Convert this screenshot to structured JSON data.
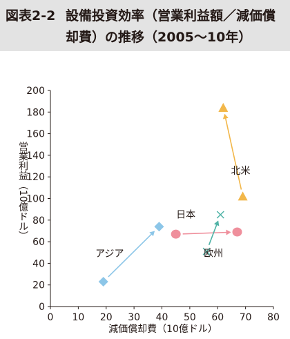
{
  "header": {
    "figure_label": "図表2-2",
    "title_line1": "設備投資効率（営業利益額／減価償",
    "title_line2": "却費）の推移（2005〜10年）"
  },
  "chart_data": {
    "type": "scatter",
    "xlabel": "減価償却費（10億ドル）",
    "ylabel": "営業利益（10億ドル）",
    "xlim": [
      0,
      80
    ],
    "ylim": [
      0,
      200
    ],
    "x_ticks": [
      0,
      10,
      20,
      30,
      40,
      50,
      60,
      70,
      80
    ],
    "y_ticks": [
      0,
      20,
      40,
      60,
      80,
      100,
      120,
      140,
      160,
      180,
      200
    ],
    "grid": false,
    "series": [
      {
        "name": "アジア",
        "marker": "diamond",
        "color": "#8cc6e8",
        "points": [
          {
            "x": 19,
            "y": 23
          },
          {
            "x": 39,
            "y": 74
          }
        ]
      },
      {
        "name": "日本",
        "marker": "circle",
        "color": "#ef8f9c",
        "points": [
          {
            "x": 45,
            "y": 67
          },
          {
            "x": 67,
            "y": 69
          }
        ]
      },
      {
        "name": "欧州",
        "marker": "x",
        "color": "#4fb3a6",
        "points": [
          {
            "x": 56,
            "y": 51
          },
          {
            "x": 61,
            "y": 85
          }
        ]
      },
      {
        "name": "北米",
        "marker": "triangle",
        "color": "#f2b74a",
        "points": [
          {
            "x": 69,
            "y": 102
          },
          {
            "x": 62,
            "y": 184
          }
        ]
      }
    ]
  }
}
